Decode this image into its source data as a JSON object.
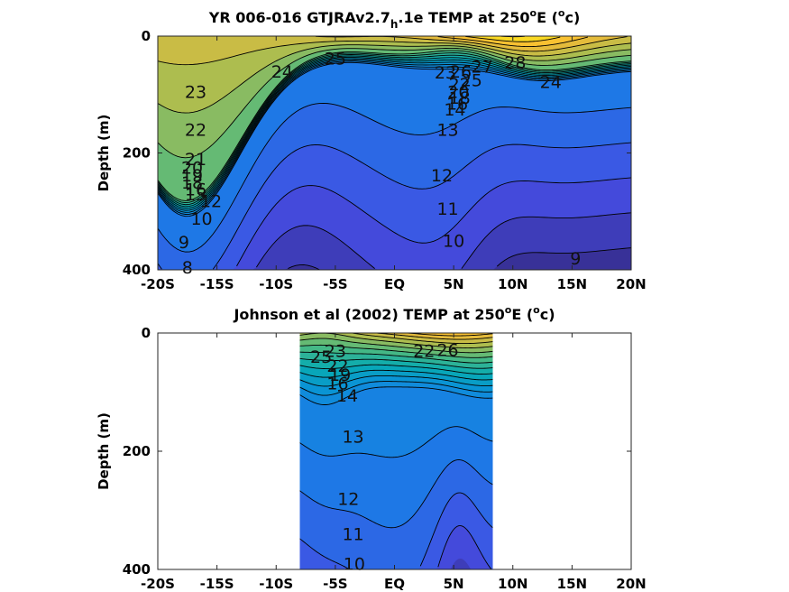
{
  "chart_data": [
    {
      "type": "contour",
      "title": "YR 006-016 GTJRAv2.7_h.1e TEMP at 250°E (°c)",
      "title_parts": {
        "main": "YR 006-016 GTJRAv2.7",
        "sub": "h",
        "rest": ".1e TEMP at 250",
        "sup1": "o",
        "mid": "E (",
        "sup2": "o",
        "end": "c)"
      },
      "xlabel": "",
      "ylabel": "Depth (m)",
      "x_ticks": [
        -20,
        -15,
        -10,
        -5,
        0,
        5,
        10,
        15,
        20
      ],
      "x_tick_labels": [
        "-20S",
        "-15S",
        "-10S",
        "-5S",
        "EQ",
        "5N",
        "10N",
        "15N",
        "20N"
      ],
      "y_ticks": [
        0,
        200,
        400
      ],
      "y_tick_labels": [
        "0",
        "200",
        "400"
      ],
      "xlim": [
        -20,
        20
      ],
      "ylim": [
        400,
        0
      ],
      "data_extent": [
        -20,
        20
      ],
      "colormap": "parula",
      "color_range": [
        7,
        29
      ],
      "contour_levels": [
        8,
        9,
        10,
        11,
        12,
        13,
        14,
        15,
        16,
        17,
        18,
        19,
        20,
        21,
        22,
        23,
        24,
        25,
        26,
        27,
        28
      ],
      "contour_labels": [
        {
          "text": "25",
          "x": -5.0,
          "y": 38
        },
        {
          "text": "24",
          "x": -9.5,
          "y": 60
        },
        {
          "text": "23",
          "x": -16.8,
          "y": 95
        },
        {
          "text": "22",
          "x": -16.8,
          "y": 160
        },
        {
          "text": "21",
          "x": -16.8,
          "y": 210
        },
        {
          "text": "20",
          "x": -17.1,
          "y": 225
        },
        {
          "text": "19",
          "x": -17.1,
          "y": 238
        },
        {
          "text": "18",
          "x": -17.1,
          "y": 250
        },
        {
          "text": "16",
          "x": -16.8,
          "y": 262
        },
        {
          "text": "15",
          "x": -16.8,
          "y": 270
        },
        {
          "text": "12",
          "x": -15.5,
          "y": 282
        },
        {
          "text": "10",
          "x": -16.3,
          "y": 312
        },
        {
          "text": "9",
          "x": -17.8,
          "y": 352
        },
        {
          "text": "8",
          "x": -17.5,
          "y": 395
        },
        {
          "text": "23",
          "x": 4.3,
          "y": 62
        },
        {
          "text": "26",
          "x": 5.6,
          "y": 60
        },
        {
          "text": "27",
          "x": 7.4,
          "y": 52
        },
        {
          "text": "28",
          "x": 10.2,
          "y": 45
        },
        {
          "text": "25",
          "x": 6.5,
          "y": 75
        },
        {
          "text": "24",
          "x": 13.2,
          "y": 78
        },
        {
          "text": "22",
          "x": 5.5,
          "y": 82
        },
        {
          "text": "20",
          "x": 5.4,
          "y": 95
        },
        {
          "text": "18",
          "x": 5.5,
          "y": 105
        },
        {
          "text": "16",
          "x": 5.3,
          "y": 115
        },
        {
          "text": "14",
          "x": 5.1,
          "y": 125
        },
        {
          "text": "13",
          "x": 4.5,
          "y": 160
        },
        {
          "text": "12",
          "x": 4.0,
          "y": 238
        },
        {
          "text": "11",
          "x": 4.5,
          "y": 295
        },
        {
          "text": "10",
          "x": 5.0,
          "y": 350
        },
        {
          "text": "9",
          "x": 15.3,
          "y": 380
        }
      ]
    },
    {
      "type": "contour",
      "title": "Johnson et al (2002) TEMP at 250°E (°c)",
      "title_parts": {
        "main": "Johnson et al (2002) TEMP at 250",
        "sup1": "o",
        "mid": "E (",
        "sup2": "o",
        "end": "c)"
      },
      "xlabel": "",
      "ylabel": "Depth (m)",
      "x_ticks": [
        -20,
        -15,
        -10,
        -5,
        0,
        5,
        10,
        15,
        20
      ],
      "x_tick_labels": [
        "-20S",
        "-15S",
        "-10S",
        "-5S",
        "EQ",
        "5N",
        "10N",
        "15N",
        "20N"
      ],
      "y_ticks": [
        0,
        200,
        400
      ],
      "y_tick_labels": [
        "0",
        "200",
        "400"
      ],
      "xlim": [
        -20,
        20
      ],
      "ylim": [
        400,
        0
      ],
      "data_extent": [
        -8,
        8.3
      ],
      "colormap": "parula",
      "color_range": [
        7,
        29
      ],
      "contour_levels": [
        10,
        11,
        12,
        13,
        14,
        15,
        16,
        17,
        18,
        19,
        20,
        21,
        22,
        23,
        24,
        25,
        26
      ],
      "contour_labels": [
        {
          "text": "25",
          "x": -6.2,
          "y": 40
        },
        {
          "text": "23",
          "x": -5.0,
          "y": 30
        },
        {
          "text": "22",
          "x": -4.8,
          "y": 55
        },
        {
          "text": "19",
          "x": -4.6,
          "y": 70
        },
        {
          "text": "16",
          "x": -4.8,
          "y": 85
        },
        {
          "text": "14",
          "x": -4.0,
          "y": 105
        },
        {
          "text": "22",
          "x": 2.5,
          "y": 30
        },
        {
          "text": "26",
          "x": 4.5,
          "y": 28
        },
        {
          "text": "13",
          "x": -3.5,
          "y": 175
        },
        {
          "text": "12",
          "x": -3.9,
          "y": 280
        },
        {
          "text": "11",
          "x": -3.5,
          "y": 340
        },
        {
          "text": "10",
          "x": -3.4,
          "y": 390
        }
      ]
    }
  ]
}
